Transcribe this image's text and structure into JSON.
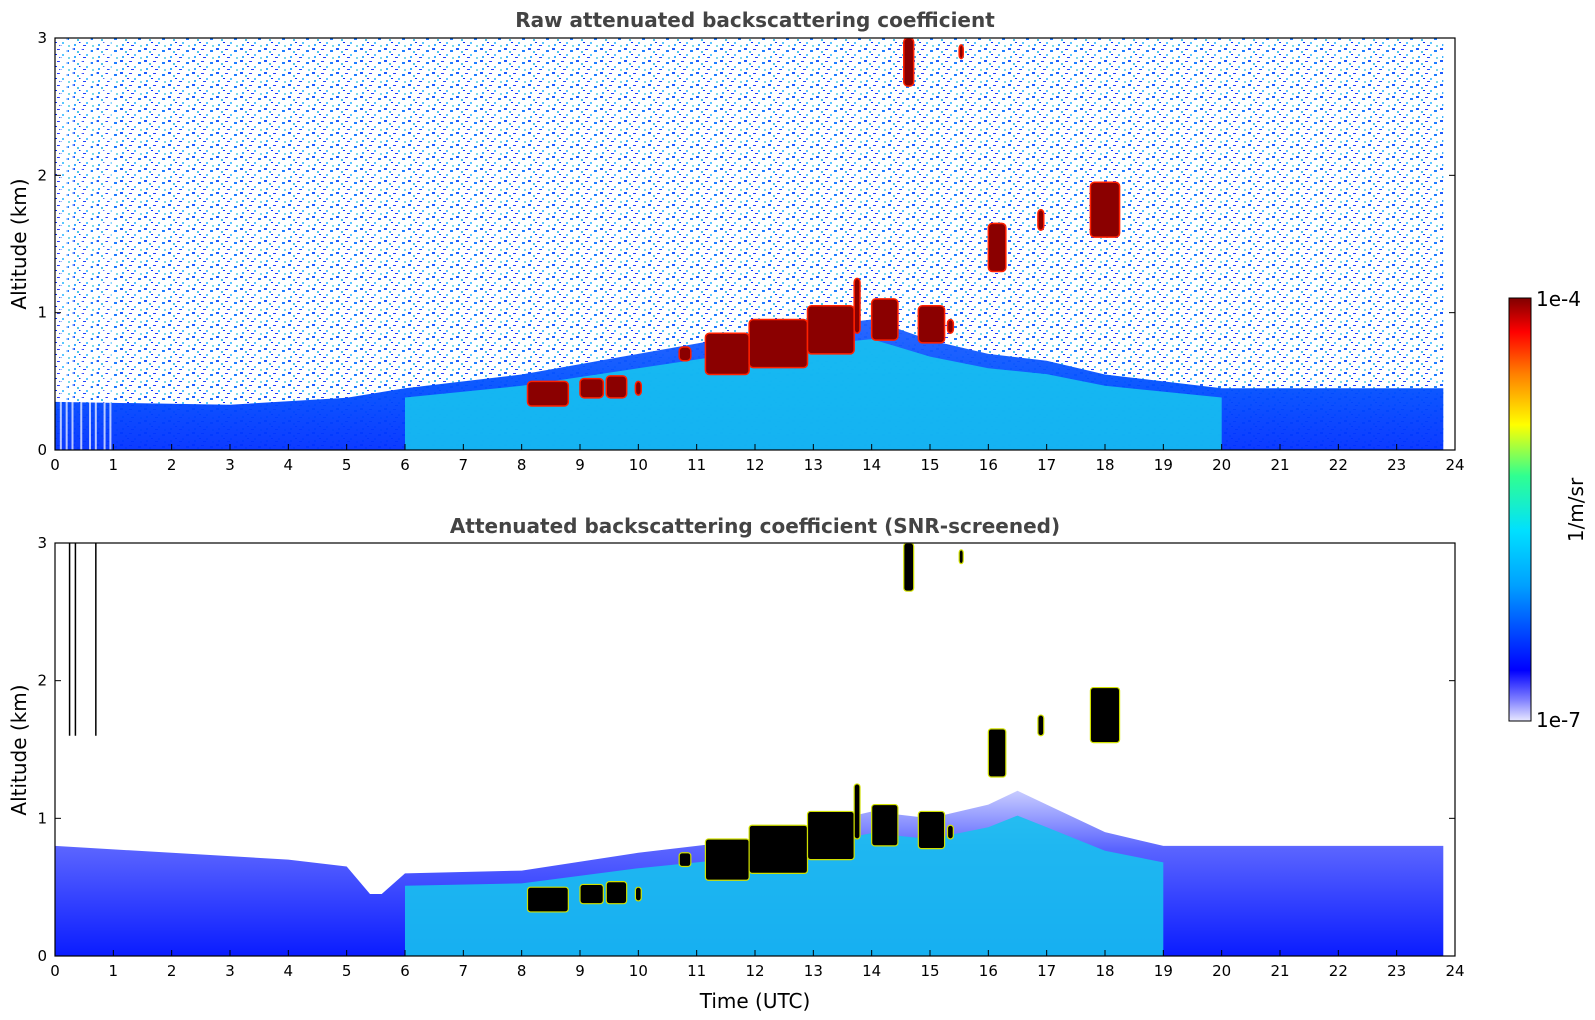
{
  "chart_data": [
    {
      "type": "heatmap",
      "title": "Raw attenuated backscattering coefficient",
      "xlabel": "",
      "ylabel": "Altitude (km)",
      "xlim": [
        0,
        24
      ],
      "ylim": [
        0,
        3
      ],
      "xticks": [
        "0",
        "1",
        "2",
        "3",
        "4",
        "5",
        "6",
        "7",
        "8",
        "9",
        "10",
        "11",
        "12",
        "13",
        "14",
        "15",
        "16",
        "17",
        "18",
        "19",
        "20",
        "21",
        "22",
        "23",
        "24"
      ],
      "yticks": [
        "0",
        "1",
        "2",
        "3"
      ],
      "data_time_range": [
        0,
        23.8
      ],
      "boundary_layer_top_km": [
        [
          0,
          0.35
        ],
        [
          3,
          0.33
        ],
        [
          5,
          0.38
        ],
        [
          6,
          0.45
        ],
        [
          8,
          0.55
        ],
        [
          10,
          0.7
        ],
        [
          12,
          0.85
        ],
        [
          14,
          0.95
        ],
        [
          15,
          0.8
        ],
        [
          16,
          0.7
        ],
        [
          17,
          0.65
        ],
        [
          18,
          0.55
        ],
        [
          20,
          0.45
        ],
        [
          23.8,
          0.45
        ]
      ],
      "cloud_layers": [
        {
          "t_start": 8.1,
          "t_end": 8.8,
          "base_km": 0.32,
          "top_km": 0.5
        },
        {
          "t_start": 9.0,
          "t_end": 9.4,
          "base_km": 0.38,
          "top_km": 0.52
        },
        {
          "t_start": 9.45,
          "t_end": 9.8,
          "base_km": 0.38,
          "top_km": 0.54
        },
        {
          "t_start": 9.95,
          "t_end": 10.05,
          "base_km": 0.4,
          "top_km": 0.5
        },
        {
          "t_start": 10.7,
          "t_end": 10.9,
          "base_km": 0.65,
          "top_km": 0.75
        },
        {
          "t_start": 11.15,
          "t_end": 11.9,
          "base_km": 0.55,
          "top_km": 0.85
        },
        {
          "t_start": 11.9,
          "t_end": 12.9,
          "base_km": 0.6,
          "top_km": 0.95
        },
        {
          "t_start": 12.9,
          "t_end": 13.7,
          "base_km": 0.7,
          "top_km": 1.05
        },
        {
          "t_start": 13.7,
          "t_end": 13.8,
          "base_km": 0.85,
          "top_km": 1.25
        },
        {
          "t_start": 14.0,
          "t_end": 14.45,
          "base_km": 0.8,
          "top_km": 1.1
        },
        {
          "t_start": 14.8,
          "t_end": 15.25,
          "base_km": 0.78,
          "top_km": 1.05
        },
        {
          "t_start": 15.3,
          "t_end": 15.4,
          "base_km": 0.85,
          "top_km": 0.95
        },
        {
          "t_start": 16.0,
          "t_end": 16.3,
          "base_km": 1.3,
          "top_km": 1.65
        },
        {
          "t_start": 16.85,
          "t_end": 16.95,
          "base_km": 1.6,
          "top_km": 1.75
        },
        {
          "t_start": 17.75,
          "t_end": 18.25,
          "base_km": 1.55,
          "top_km": 1.95
        },
        {
          "t_start": 14.55,
          "t_end": 14.72,
          "base_km": 2.65,
          "top_km": 3.0
        },
        {
          "t_start": 15.5,
          "t_end": 15.57,
          "base_km": 2.85,
          "top_km": 2.95
        }
      ]
    },
    {
      "type": "heatmap",
      "title": "Attenuated backscattering coefficient (SNR-screened)",
      "xlabel": "Time (UTC)",
      "ylabel": "Altitude (km)",
      "xlim": [
        0,
        24
      ],
      "ylim": [
        0,
        3
      ],
      "xticks": [
        "0",
        "1",
        "2",
        "3",
        "4",
        "5",
        "6",
        "7",
        "8",
        "9",
        "10",
        "11",
        "12",
        "13",
        "14",
        "15",
        "16",
        "17",
        "18",
        "19",
        "20",
        "21",
        "22",
        "23",
        "24"
      ],
      "yticks": [
        "0",
        "1",
        "2",
        "3"
      ],
      "screened_top_km": [
        [
          0,
          0.8
        ],
        [
          2,
          0.75
        ],
        [
          4,
          0.7
        ],
        [
          5,
          0.65
        ],
        [
          5.4,
          0.45
        ],
        [
          5.6,
          0.45
        ],
        [
          6,
          0.6
        ],
        [
          8,
          0.62
        ],
        [
          10,
          0.75
        ],
        [
          11,
          0.8
        ],
        [
          12,
          0.85
        ],
        [
          13,
          0.95
        ],
        [
          14,
          1.05
        ],
        [
          15,
          1.0
        ],
        [
          16,
          1.1
        ],
        [
          16.5,
          1.2
        ],
        [
          17,
          1.1
        ],
        [
          18,
          0.9
        ],
        [
          19,
          0.8
        ],
        [
          20,
          0.8
        ],
        [
          23.8,
          0.8
        ]
      ]
    }
  ],
  "colorbar": {
    "max_label": "1e-4",
    "min_label": "1e-7",
    "unit_label": "1/m/sr",
    "scale": "log"
  },
  "colors": {
    "low": "#0000ff",
    "mid": "#00bfff",
    "high": "#8b0000",
    "screened_cloud": "#000000"
  }
}
